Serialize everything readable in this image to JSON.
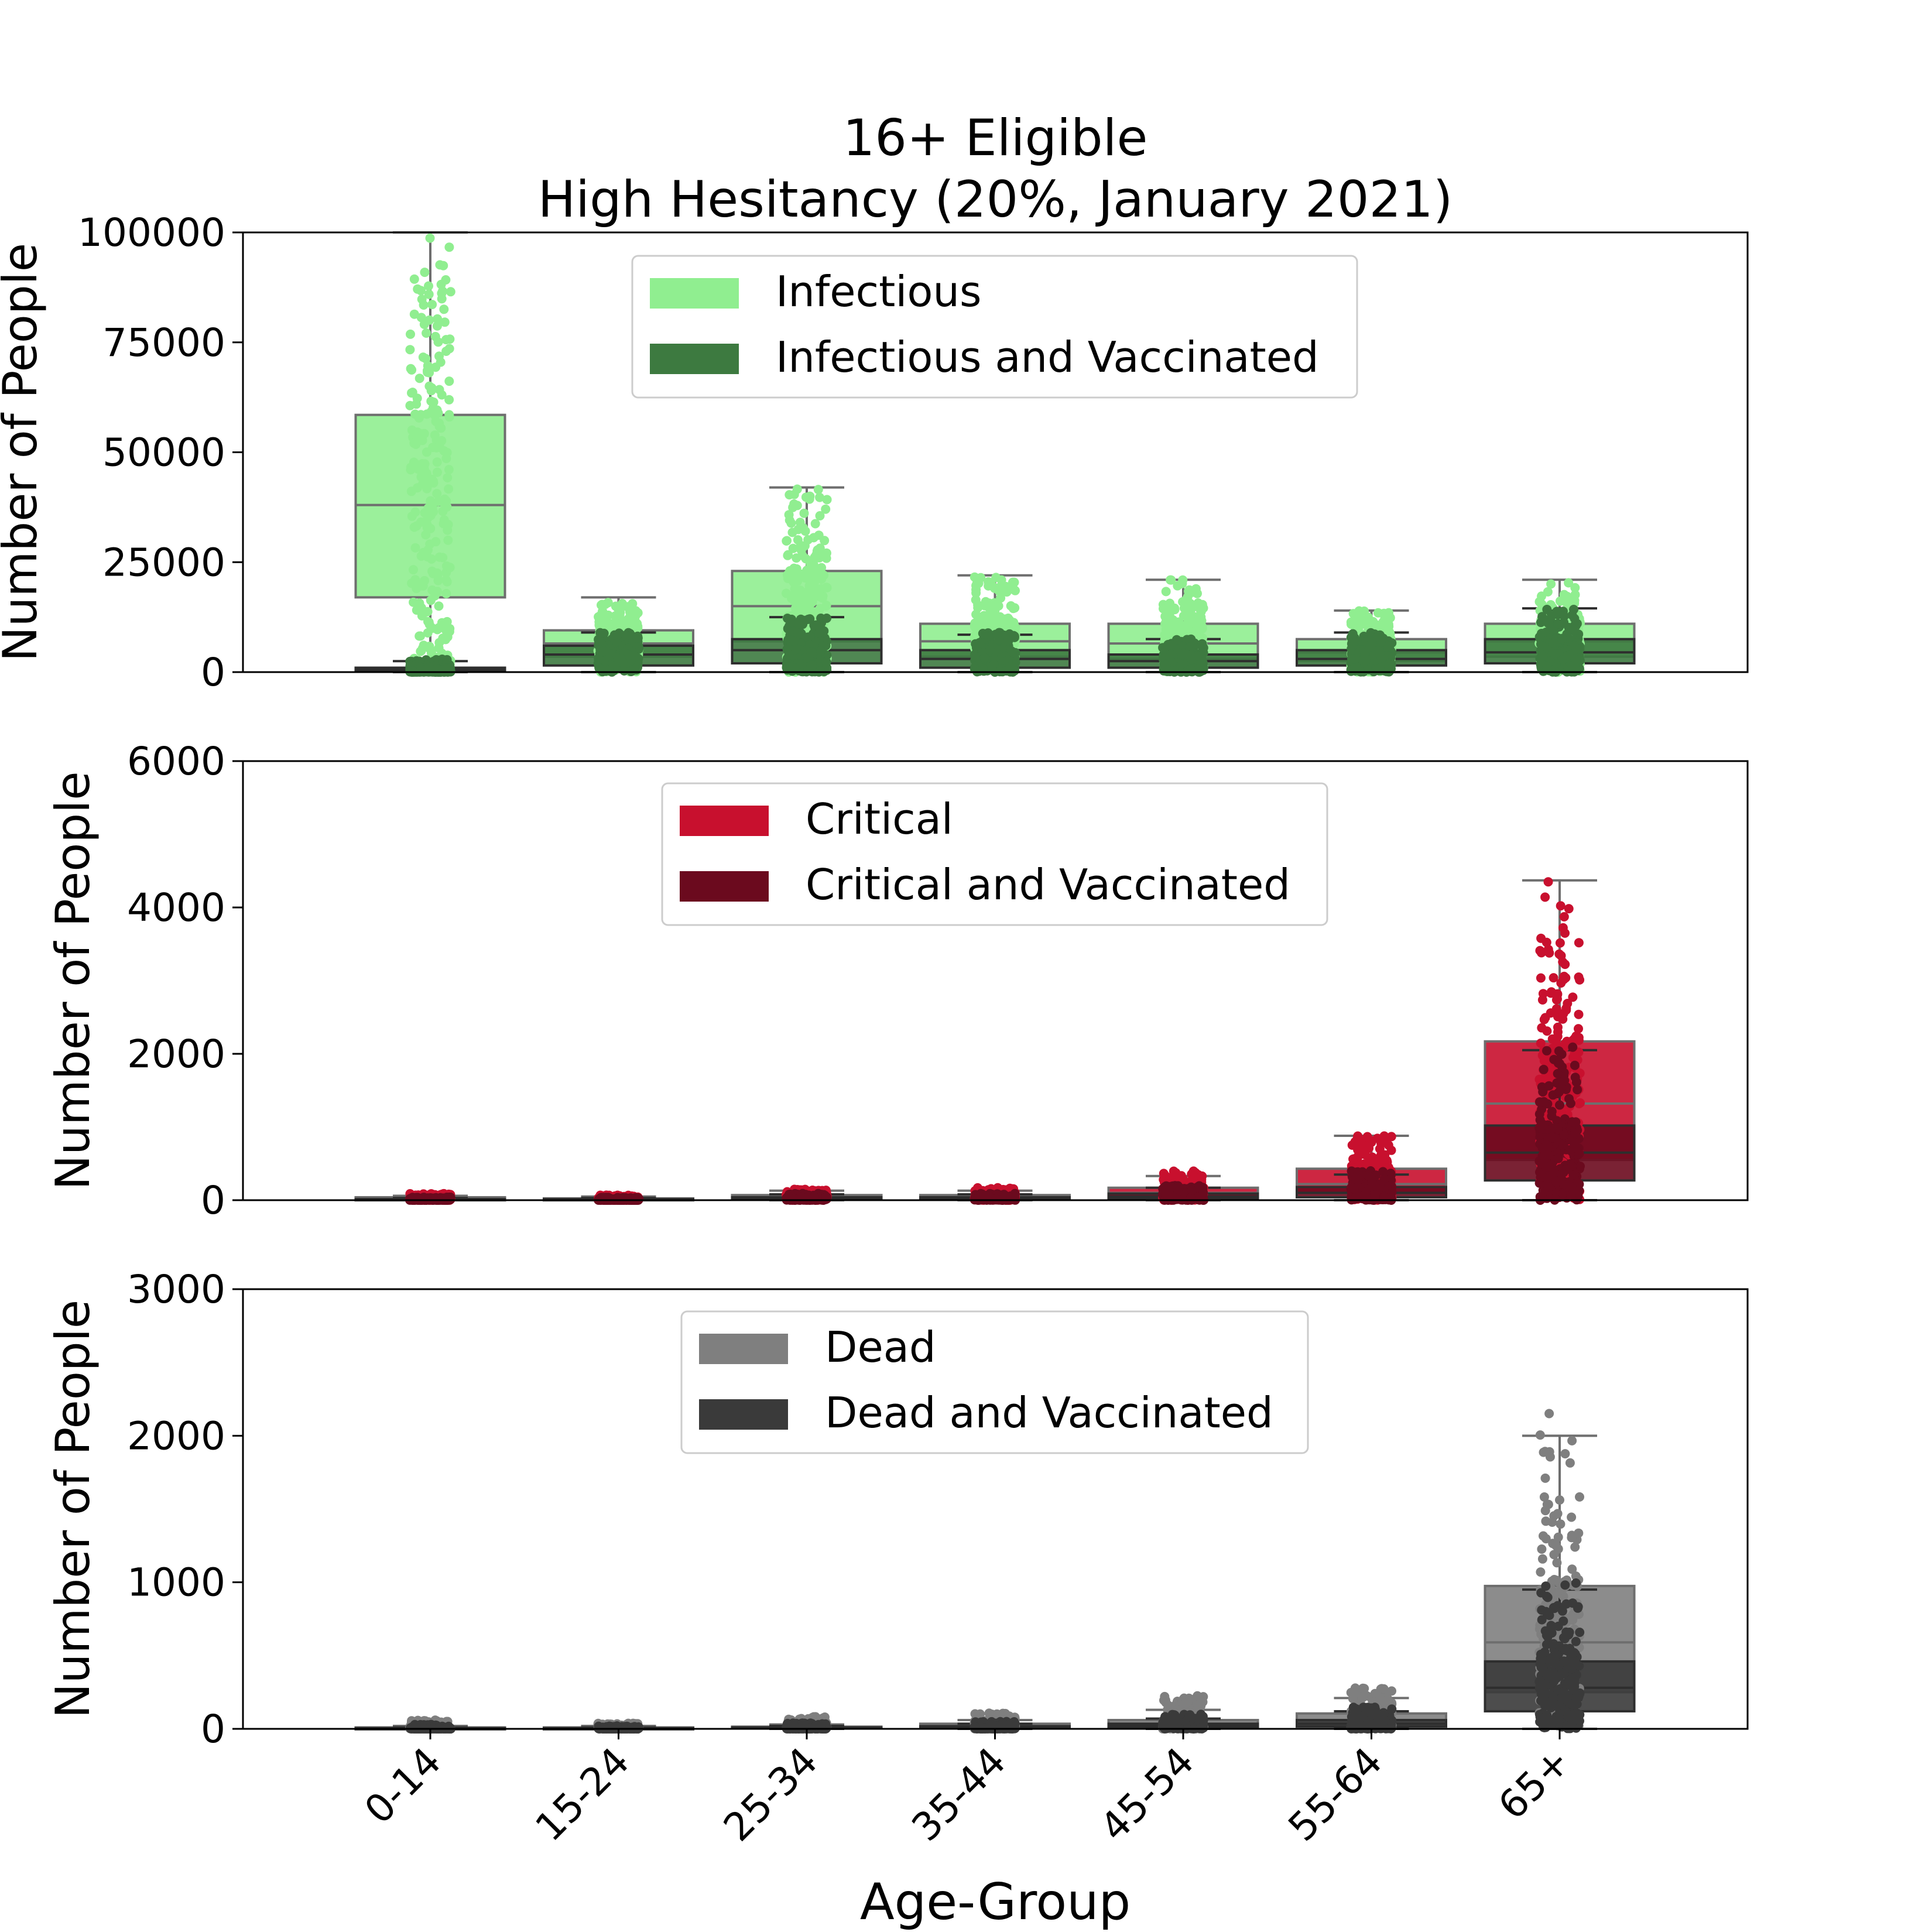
{
  "chart_data": {
    "title_lines": [
      "16+ Eligible",
      "High Hesitancy (20%, January 2021)"
    ],
    "xlabel": "Age-Group",
    "categories": [
      "0-14",
      "15-24",
      "25-34",
      "35-44",
      "45-54",
      "55-64",
      "65+"
    ],
    "panels": [
      {
        "type": "box",
        "ylabel": "Number of People",
        "ylim": [
          0,
          100000
        ],
        "yticks": [
          "0",
          "25000",
          "50000",
          "75000",
          "100000"
        ],
        "legend_position": "top-center",
        "series": [
          {
            "name": "Infectious",
            "color": "#90ee90",
            "box": [
              {
                "whisker_low": 0,
                "q1": 17000,
                "median": 38000,
                "q3": 58500,
                "whisker_high": 100000
              },
              {
                "whisker_low": 0,
                "q1": 3500,
                "median": 6500,
                "q3": 9500,
                "whisker_high": 17000
              },
              {
                "whisker_low": 0,
                "q1": 7000,
                "median": 15000,
                "q3": 23000,
                "whisker_high": 42000
              },
              {
                "whisker_low": 0,
                "q1": 3500,
                "median": 7000,
                "q3": 11000,
                "whisker_high": 22000
              },
              {
                "whisker_low": 0,
                "q1": 3000,
                "median": 6500,
                "q3": 11000,
                "whisker_high": 21000
              },
              {
                "whisker_low": 0,
                "q1": 2500,
                "median": 4500,
                "q3": 7500,
                "whisker_high": 14000
              },
              {
                "whisker_low": 0,
                "q1": 3500,
                "median": 7000,
                "q3": 11000,
                "whisker_high": 21000
              }
            ],
            "point_max": [
              99000,
              16000,
              42000,
              22000,
              21000,
              14000,
              21000
            ]
          },
          {
            "name": "Infectious and Vaccinated",
            "color": "#3d7a40",
            "box": [
              {
                "whisker_low": 0,
                "q1": 100,
                "median": 500,
                "q3": 1000,
                "whisker_high": 2500
              },
              {
                "whisker_low": 0,
                "q1": 1500,
                "median": 4000,
                "q3": 6000,
                "whisker_high": 9000
              },
              {
                "whisker_low": 0,
                "q1": 2000,
                "median": 5000,
                "q3": 7500,
                "whisker_high": 12500
              },
              {
                "whisker_low": 0,
                "q1": 1000,
                "median": 3000,
                "q3": 5000,
                "whisker_high": 8500
              },
              {
                "whisker_low": 0,
                "q1": 1000,
                "median": 2500,
                "q3": 4000,
                "whisker_high": 7500
              },
              {
                "whisker_low": 0,
                "q1": 1500,
                "median": 3000,
                "q3": 5000,
                "whisker_high": 9000
              },
              {
                "whisker_low": 0,
                "q1": 2000,
                "median": 4500,
                "q3": 7500,
                "whisker_high": 14500
              }
            ],
            "point_max": [
              3000,
              9000,
              12500,
              9000,
              7500,
              9000,
              14500
            ]
          }
        ]
      },
      {
        "type": "box",
        "ylabel": "Number of People",
        "ylim": [
          0,
          6000
        ],
        "yticks": [
          "0",
          "2000",
          "4000",
          "6000"
        ],
        "legend_position": "top-center",
        "series": [
          {
            "name": "Critical",
            "color": "#c8102e",
            "box": [
              {
                "whisker_low": 0,
                "q1": 10,
                "median": 25,
                "q3": 40,
                "whisker_high": 60
              },
              {
                "whisker_low": 0,
                "q1": 5,
                "median": 15,
                "q3": 25,
                "whisker_high": 50
              },
              {
                "whisker_low": 0,
                "q1": 20,
                "median": 45,
                "q3": 70,
                "whisker_high": 130
              },
              {
                "whisker_low": 0,
                "q1": 20,
                "median": 45,
                "q3": 70,
                "whisker_high": 130
              },
              {
                "whisker_low": 0,
                "q1": 40,
                "median": 100,
                "q3": 170,
                "whisker_high": 330
              },
              {
                "whisker_low": 0,
                "q1": 100,
                "median": 220,
                "q3": 430,
                "whisker_high": 880
              },
              {
                "whisker_low": 0,
                "q1": 550,
                "median": 1320,
                "q3": 2170,
                "whisker_high": 4370
              }
            ],
            "point_max": [
              90,
              70,
              150,
              170,
              400,
              900,
              4370
            ]
          },
          {
            "name": "Critical and Vaccinated",
            "color": "#6b0a1e",
            "box": [
              {
                "whisker_low": 0,
                "q1": 3,
                "median": 8,
                "q3": 15,
                "whisker_high": 30
              },
              {
                "whisker_low": 0,
                "q1": 3,
                "median": 8,
                "q3": 15,
                "whisker_high": 30
              },
              {
                "whisker_low": 0,
                "q1": 10,
                "median": 25,
                "q3": 40,
                "whisker_high": 80
              },
              {
                "whisker_low": 0,
                "q1": 10,
                "median": 25,
                "q3": 40,
                "whisker_high": 80
              },
              {
                "whisker_low": 0,
                "q1": 20,
                "median": 50,
                "q3": 90,
                "whisker_high": 170
              },
              {
                "whisker_low": 0,
                "q1": 40,
                "median": 100,
                "q3": 180,
                "whisker_high": 350
              },
              {
                "whisker_low": 0,
                "q1": 270,
                "median": 650,
                "q3": 1020,
                "whisker_high": 2050
              }
            ],
            "point_max": [
              40,
              40,
              90,
              90,
              200,
              400,
              2100
            ]
          }
        ]
      },
      {
        "type": "box",
        "ylabel": "Number of People",
        "ylim": [
          0,
          3000
        ],
        "yticks": [
          "0",
          "1000",
          "2000",
          "3000"
        ],
        "legend_position": "top-center",
        "series": [
          {
            "name": "Dead",
            "color": "#7f7f7f",
            "box": [
              {
                "whisker_low": 0,
                "q1": 2,
                "median": 5,
                "q3": 10,
                "whisker_high": 20
              },
              {
                "whisker_low": 0,
                "q1": 2,
                "median": 5,
                "q3": 10,
                "whisker_high": 20
              },
              {
                "whisker_low": 0,
                "q1": 3,
                "median": 8,
                "q3": 15,
                "whisker_high": 30
              },
              {
                "whisker_low": 0,
                "q1": 8,
                "median": 20,
                "q3": 35,
                "whisker_high": 60
              },
              {
                "whisker_low": 0,
                "q1": 15,
                "median": 35,
                "q3": 60,
                "whisker_high": 130
              },
              {
                "whisker_low": 0,
                "q1": 30,
                "median": 60,
                "q3": 105,
                "whisker_high": 210
              },
              {
                "whisker_low": 0,
                "q1": 250,
                "median": 590,
                "q3": 975,
                "whisker_high": 2000
              }
            ],
            "point_max": [
              60,
              40,
              90,
              110,
              230,
              280,
              2200
            ]
          },
          {
            "name": "Dead and Vaccinated",
            "color": "#3a3a3a",
            "box": [
              {
                "whisker_low": 0,
                "q1": 1,
                "median": 3,
                "q3": 5,
                "whisker_high": 10
              },
              {
                "whisker_low": 0,
                "q1": 1,
                "median": 3,
                "q3": 5,
                "whisker_high": 10
              },
              {
                "whisker_low": 0,
                "q1": 2,
                "median": 5,
                "q3": 10,
                "whisker_high": 20
              },
              {
                "whisker_low": 0,
                "q1": 4,
                "median": 10,
                "q3": 18,
                "whisker_high": 35
              },
              {
                "whisker_low": 0,
                "q1": 8,
                "median": 20,
                "q3": 35,
                "whisker_high": 70
              },
              {
                "whisker_low": 0,
                "q1": 15,
                "median": 35,
                "q3": 60,
                "whisker_high": 120
              },
              {
                "whisker_low": 0,
                "q1": 120,
                "median": 280,
                "q3": 460,
                "whisker_high": 950
              }
            ],
            "point_max": [
              30,
              20,
              40,
              50,
              100,
              150,
              1000
            ]
          }
        ]
      }
    ]
  }
}
